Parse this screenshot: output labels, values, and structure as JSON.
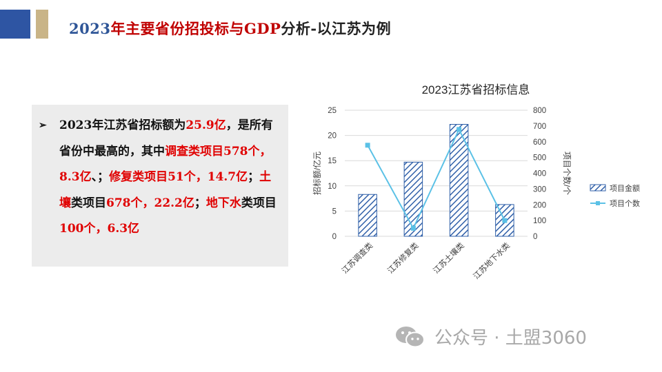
{
  "header": {
    "year": "2023",
    "title_red": "年主要省份招投标与GDP",
    "title_rest": "分析-以江苏为例"
  },
  "textbox": {
    "bullet": "➢",
    "segments": [
      {
        "text": "2023年江苏省招标额为",
        "color": "dark"
      },
      {
        "text": "25.9亿",
        "color": "red"
      },
      {
        "text": "，是所有省份中最高的，其中",
        "color": "dark"
      },
      {
        "text": "调查类项目578个，8.3亿",
        "color": "red"
      },
      {
        "text": "、；",
        "color": "dark"
      },
      {
        "text": "修复类项目51个，14.7亿",
        "color": "red"
      },
      {
        "text": "；",
        "color": "dark"
      },
      {
        "text": "土壤",
        "color": "red"
      },
      {
        "text": "类项目",
        "color": "dark"
      },
      {
        "text": "678个，22.2亿",
        "color": "red"
      },
      {
        "text": "；",
        "color": "dark"
      },
      {
        "text": "地下水",
        "color": "red"
      },
      {
        "text": "类项目",
        "color": "dark"
      },
      {
        "text": "100个，6.3亿",
        "color": "red"
      }
    ]
  },
  "chart_data": {
    "type": "bar",
    "title": "2023江苏省招标信息",
    "categories": [
      "江苏调查类",
      "江苏修复类",
      "江苏土壤类",
      "江苏地下水类"
    ],
    "series": [
      {
        "name": "项目金额",
        "type": "bar",
        "axis": "left",
        "values": [
          8.3,
          14.7,
          22.2,
          6.3
        ]
      },
      {
        "name": "项目个数",
        "type": "line",
        "axis": "right",
        "values": [
          578,
          51,
          678,
          100
        ]
      }
    ],
    "ylabel": "招标额/亿元",
    "ylabel_right": "项目个数/个",
    "ylim": [
      0,
      25
    ],
    "ylim_right": [
      0,
      800
    ],
    "yticks": [
      "0",
      "5",
      "10",
      "15",
      "20",
      "25"
    ],
    "yticks_right": [
      "0",
      "100",
      "200",
      "300",
      "400",
      "500",
      "600",
      "700",
      "800"
    ],
    "grid": true,
    "legend": "right",
    "colors": {
      "bar": "#2f5fa8",
      "line": "#5bc1e6",
      "grid": "#d9d9d9"
    }
  },
  "watermark": {
    "text": "公众号 · 土盟3060",
    "icon": "wechat-icon"
  }
}
